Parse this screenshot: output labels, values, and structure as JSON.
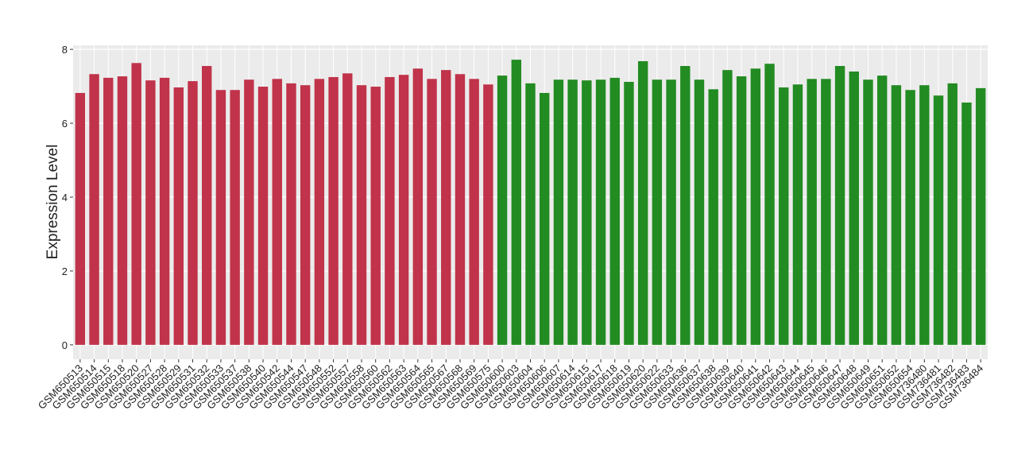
{
  "chart_data": {
    "type": "bar",
    "y_label": "Expression Level",
    "categories": [
      "GSM650513",
      "GSM650514",
      "GSM650515",
      "GSM650518",
      "GSM650520",
      "GSM650527",
      "GSM650528",
      "GSM650529",
      "GSM650531",
      "GSM650532",
      "GSM650533",
      "GSM650537",
      "GSM650538",
      "GSM650540",
      "GSM650542",
      "GSM650544",
      "GSM650547",
      "GSM650548",
      "GSM650552",
      "GSM650557",
      "GSM650558",
      "GSM650560",
      "GSM650562",
      "GSM650563",
      "GSM650564",
      "GSM650565",
      "GSM650567",
      "GSM650568",
      "GSM650569",
      "GSM650575",
      "GSM650600",
      "GSM650603",
      "GSM650604",
      "GSM650606",
      "GSM650607",
      "GSM650614",
      "GSM650615",
      "GSM650617",
      "GSM650618",
      "GSM650619",
      "GSM650620",
      "GSM650622",
      "GSM650633",
      "GSM650636",
      "GSM650637",
      "GSM650638",
      "GSM650639",
      "GSM650640",
      "GSM650641",
      "GSM650642",
      "GSM650643",
      "GSM650644",
      "GSM650645",
      "GSM650646",
      "GSM650647",
      "GSM650648",
      "GSM650649",
      "GSM650651",
      "GSM650652",
      "GSM650654",
      "GSM736480",
      "GSM736481",
      "GSM736482",
      "GSM736483",
      "GSM736484"
    ],
    "values": [
      6.82,
      7.33,
      7.23,
      7.27,
      7.63,
      7.16,
      7.23,
      6.97,
      7.14,
      7.55,
      6.9,
      6.9,
      7.18,
      6.99,
      7.2,
      7.08,
      7.03,
      7.2,
      7.25,
      7.35,
      7.03,
      6.99,
      7.25,
      7.31,
      7.48,
      7.2,
      7.44,
      7.33,
      7.2,
      7.05,
      7.29,
      7.72,
      7.08,
      6.82,
      7.18,
      7.18,
      7.16,
      7.18,
      7.23,
      7.12,
      7.68,
      7.18,
      7.18,
      7.55,
      7.18,
      6.92,
      7.44,
      7.27,
      7.48,
      7.61,
      6.97,
      7.05,
      7.2,
      7.2,
      7.55,
      7.4,
      7.18,
      7.29,
      7.03,
      6.9,
      7.03,
      6.75,
      7.08,
      6.56,
      6.95
    ],
    "colors": [
      "#c0334a",
      "#c0334a",
      "#c0334a",
      "#c0334a",
      "#c0334a",
      "#c0334a",
      "#c0334a",
      "#c0334a",
      "#c0334a",
      "#c0334a",
      "#c0334a",
      "#c0334a",
      "#c0334a",
      "#c0334a",
      "#c0334a",
      "#c0334a",
      "#c0334a",
      "#c0334a",
      "#c0334a",
      "#c0334a",
      "#c0334a",
      "#c0334a",
      "#c0334a",
      "#c0334a",
      "#c0334a",
      "#c0334a",
      "#c0334a",
      "#c0334a",
      "#c0334a",
      "#c0334a",
      "#228b22",
      "#228b22",
      "#228b22",
      "#228b22",
      "#228b22",
      "#228b22",
      "#228b22",
      "#228b22",
      "#228b22",
      "#228b22",
      "#228b22",
      "#228b22",
      "#228b22",
      "#228b22",
      "#228b22",
      "#228b22",
      "#228b22",
      "#228b22",
      "#228b22",
      "#228b22",
      "#228b22",
      "#228b22",
      "#228b22",
      "#228b22",
      "#228b22",
      "#228b22",
      "#228b22",
      "#228b22",
      "#228b22",
      "#228b22",
      "#228b22",
      "#228b22",
      "#228b22",
      "#228b22",
      "#228b22"
    ],
    "ylim": [
      -0.39,
      8.11
    ],
    "yticks": [
      0,
      2,
      4,
      6,
      8
    ],
    "grid": true
  }
}
